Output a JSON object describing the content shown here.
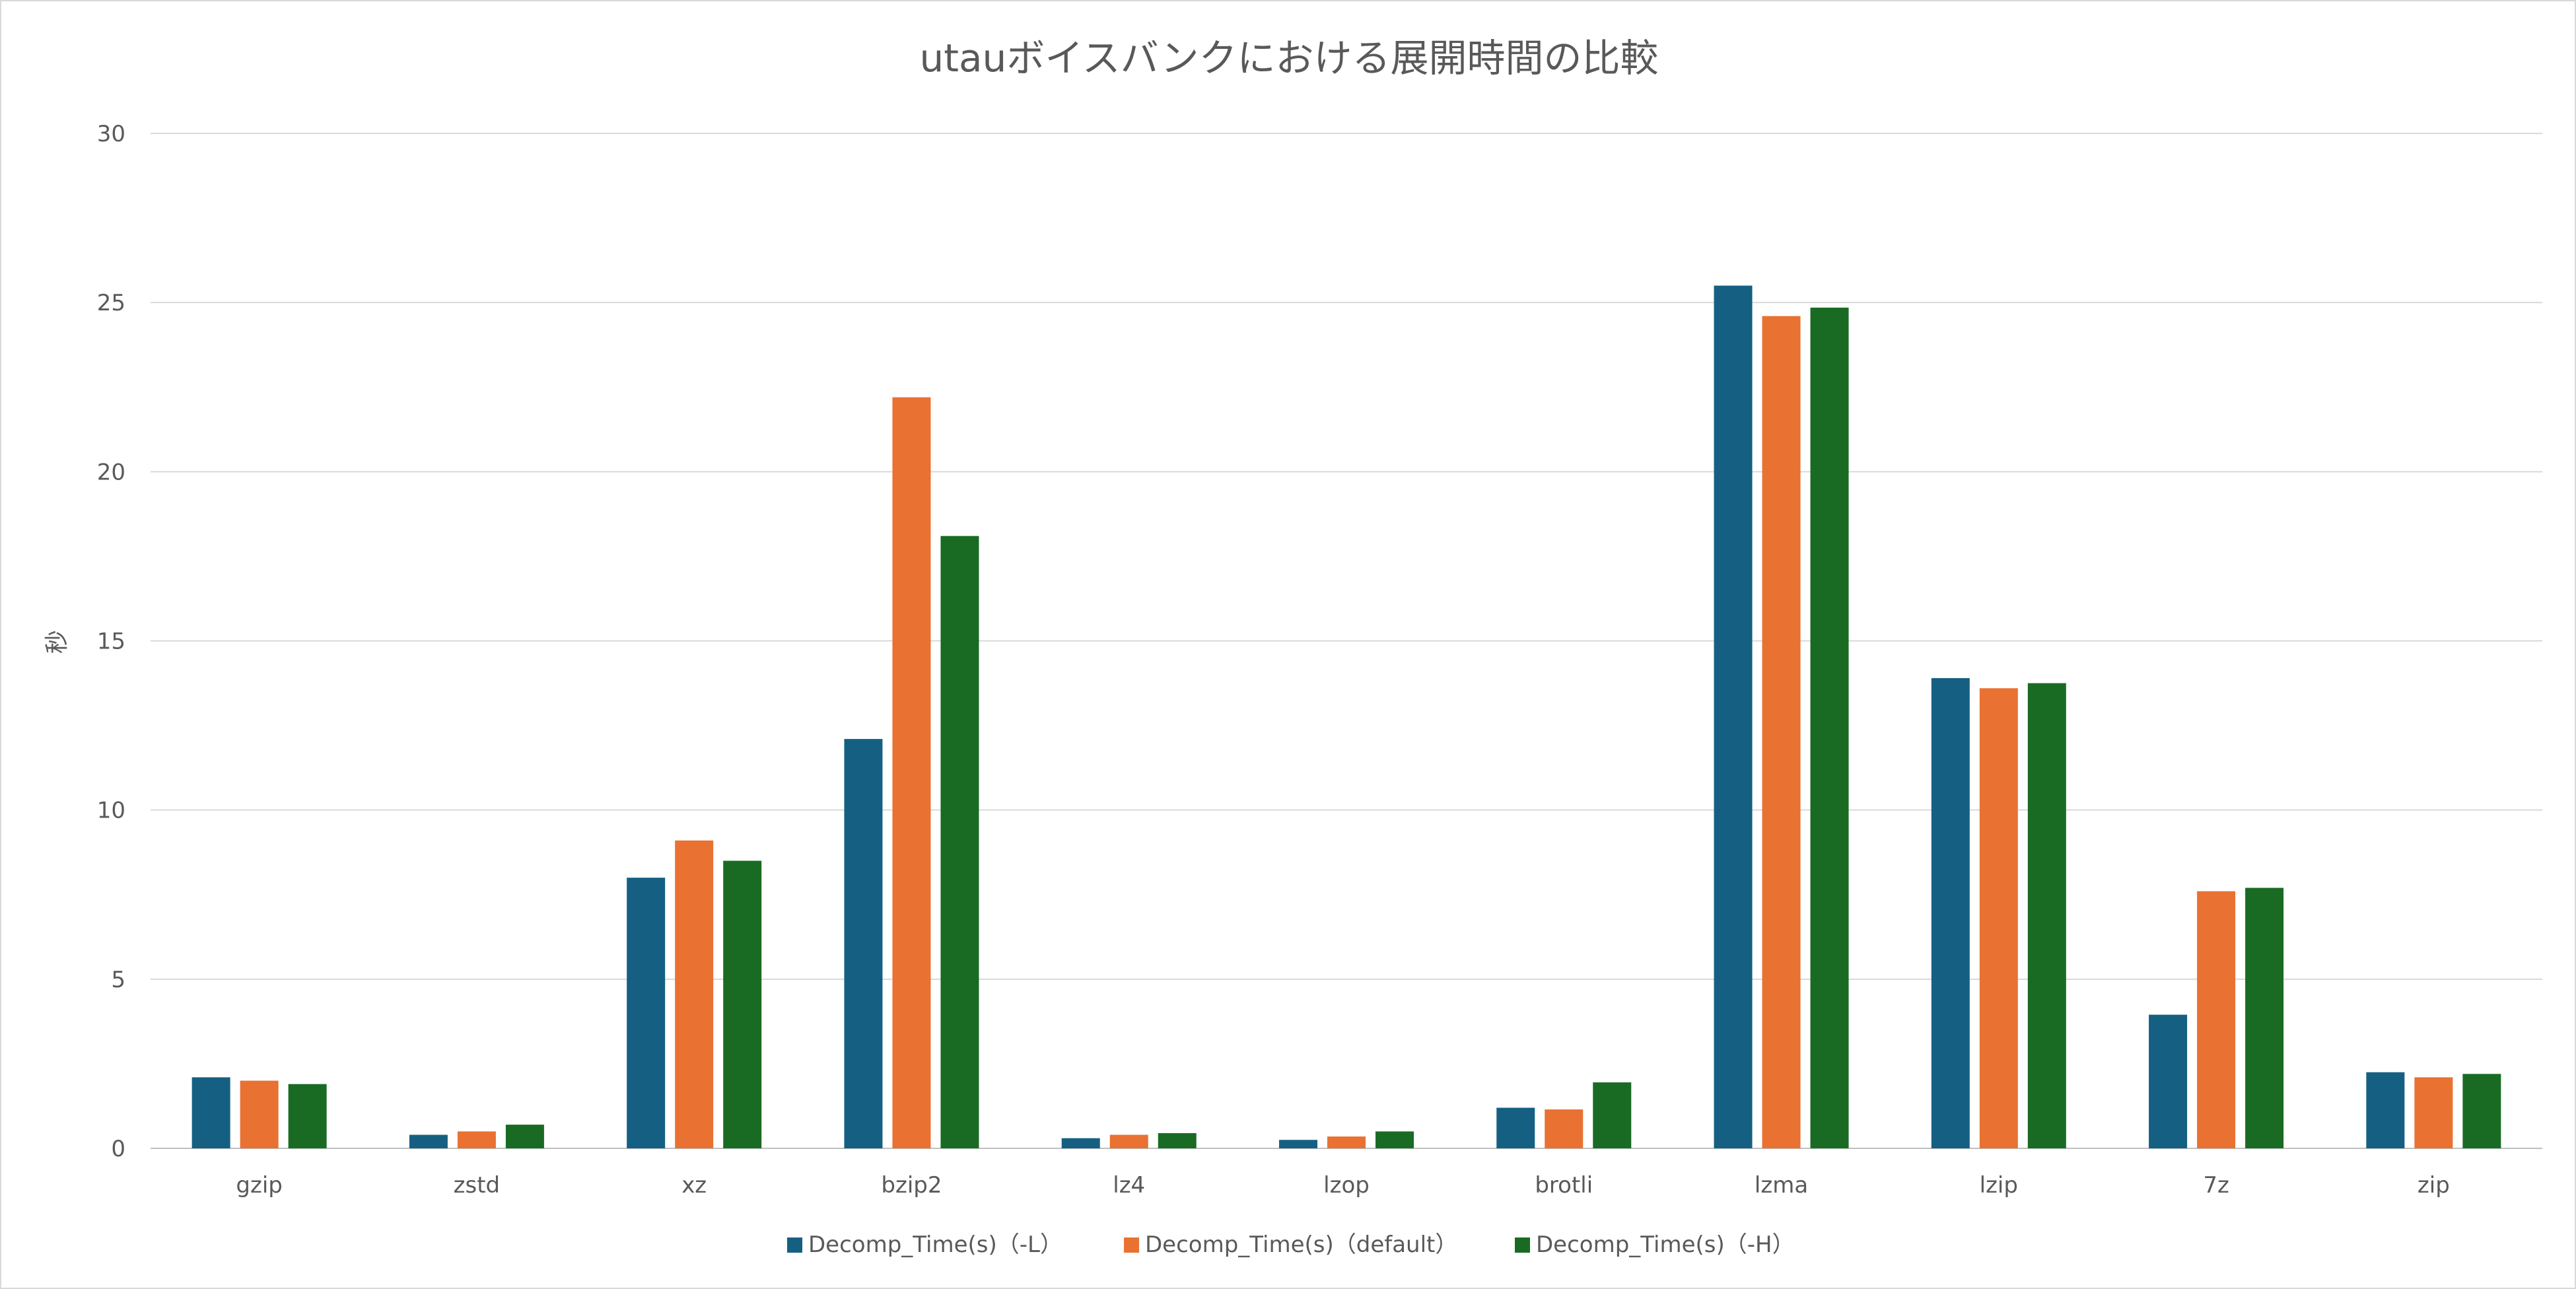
{
  "chart_data": {
    "type": "bar",
    "title": "utauボイスバンクにおける展開時間の比較",
    "xlabel": "",
    "ylabel": "秒",
    "ylim": [
      0,
      30
    ],
    "yticks": [
      0,
      5,
      10,
      15,
      20,
      25,
      30
    ],
    "grid": true,
    "legend_position": "bottom",
    "categories": [
      "gzip",
      "zstd",
      "xz",
      "bzip2",
      "lz4",
      "lzop",
      "brotli",
      "lzma",
      "lzip",
      "7z",
      "zip"
    ],
    "series": [
      {
        "name": "Decomp_Time(s)（-L）",
        "color": "#156082",
        "values": [
          2.1,
          0.4,
          8.0,
          12.1,
          0.3,
          0.25,
          1.2,
          25.5,
          13.9,
          3.95,
          2.25
        ]
      },
      {
        "name": "Decomp_Time(s)（default）",
        "color": "#E97132",
        "values": [
          2.0,
          0.5,
          9.1,
          22.2,
          0.4,
          0.35,
          1.15,
          24.6,
          13.6,
          7.6,
          2.1
        ]
      },
      {
        "name": "Decomp_Time(s)（-H）",
        "color": "#196B24",
        "values": [
          1.9,
          0.7,
          8.5,
          18.1,
          0.45,
          0.5,
          1.95,
          24.85,
          13.75,
          7.7,
          2.2
        ]
      }
    ]
  }
}
